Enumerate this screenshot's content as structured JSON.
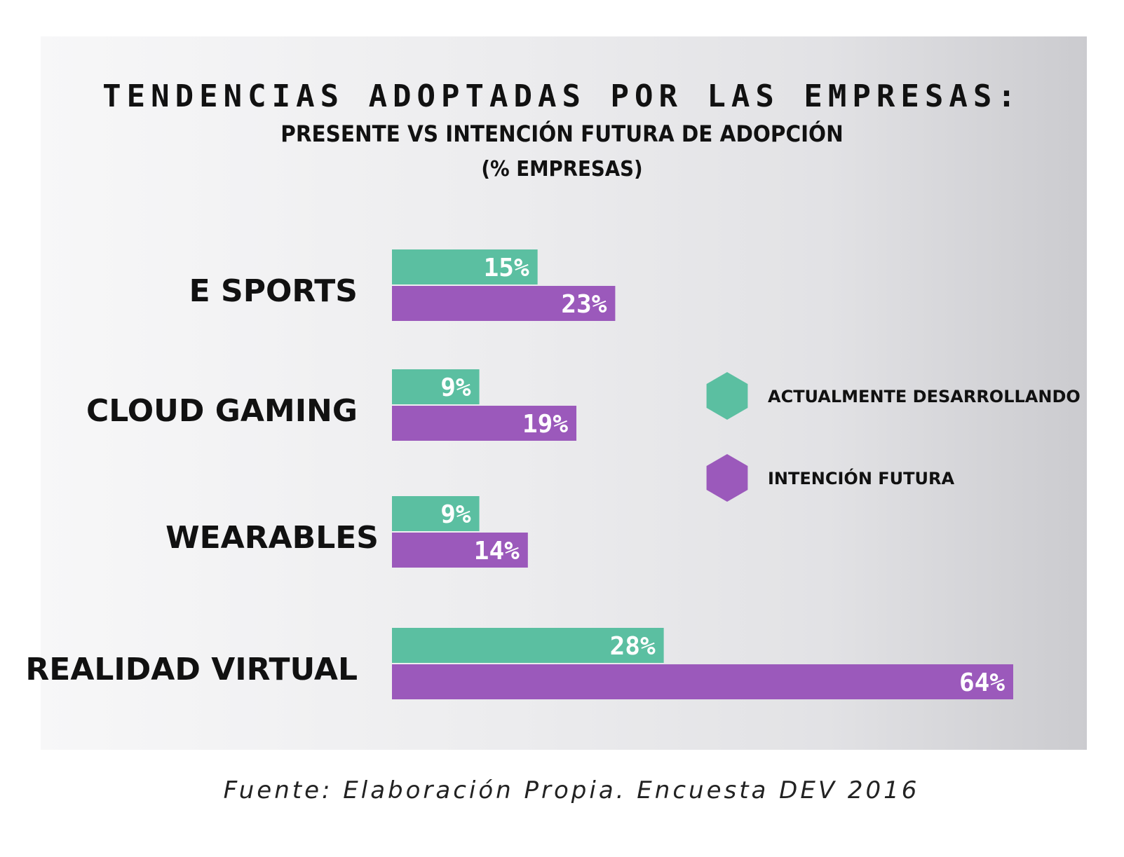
{
  "chart_data": {
    "type": "bar",
    "orientation": "horizontal",
    "title": "TENDENCIAS ADOPTADAS POR LAS EMPRESAS:",
    "subtitle": "PRESENTE VS INTENCIÓN FUTURA DE ADOPCIÓN",
    "unit_label": "(% EMPRESAS)",
    "categories": [
      "E SPORTS",
      "CLOUD GAMING",
      "WEARABLES",
      "REALIDAD VIRTUAL"
    ],
    "series": [
      {
        "name": "ACTUALMENTE DESARROLLANDO",
        "color": "#5bbfa1",
        "values": [
          15,
          9,
          9,
          28
        ],
        "labels": [
          "15%",
          "9%",
          "9%",
          "28%"
        ]
      },
      {
        "name": "INTENCIÓN FUTURA",
        "color": "#9b59bb",
        "values": [
          23,
          19,
          14,
          64
        ],
        "labels": [
          "23%",
          "19%",
          "14%",
          "64%"
        ]
      }
    ],
    "legend_position": "right",
    "grid": false
  },
  "source": "Fuente: Elaboración Propia. Encuesta DEV 2016"
}
